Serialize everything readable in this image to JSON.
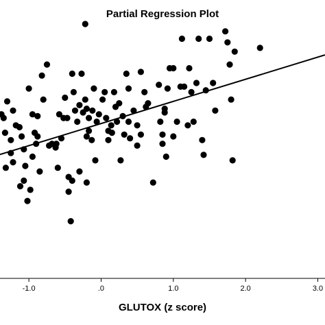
{
  "chart_data": {
    "type": "scatter",
    "title": "Partial Regression Plot",
    "xlabel": "GLUTOX (z score)",
    "ylabel": "",
    "xlim": [
      -1.4,
      3.1
    ],
    "ylim": [
      -4.2,
      3.35
    ],
    "x_ticks": [
      {
        "value": -1.0,
        "label": "-1.0"
      },
      {
        "value": 0.0,
        "label": ".0"
      },
      {
        "value": 1.0,
        "label": "1.0"
      },
      {
        "value": 2.0,
        "label": "2.0"
      },
      {
        "value": 3.0,
        "label": "3.0"
      }
    ],
    "grid": false,
    "legend": false,
    "colors": {
      "points": "#000000",
      "line": "#000000",
      "axis": "#000000"
    },
    "fit_line": {
      "intercept": 0.0,
      "slope": 0.6
    },
    "points": [
      {
        "x": -1.3,
        "y": 0.6
      },
      {
        "x": -1.22,
        "y": 0.35
      },
      {
        "x": -1.18,
        "y": -0.05
      },
      {
        "x": -1.13,
        "y": -0.1
      },
      {
        "x": -1.33,
        "y": -0.25
      },
      {
        "x": -1.25,
        "y": -0.45
      },
      {
        "x": -1.1,
        "y": -0.35
      },
      {
        "x": -1.25,
        "y": -0.8
      },
      {
        "x": -1.32,
        "y": -1.2
      },
      {
        "x": -1.22,
        "y": -1.05
      },
      {
        "x": -1.07,
        "y": -0.7
      },
      {
        "x": -1.0,
        "y": 0.95
      },
      {
        "x": -0.95,
        "y": 0.25
      },
      {
        "x": -0.92,
        "y": -0.25
      },
      {
        "x": -0.88,
        "y": -0.35
      },
      {
        "x": -0.95,
        "y": -0.9
      },
      {
        "x": -1.05,
        "y": -1.15
      },
      {
        "x": -1.07,
        "y": -1.55
      },
      {
        "x": -1.12,
        "y": -1.7
      },
      {
        "x": -0.98,
        "y": -1.8
      },
      {
        "x": -1.02,
        "y": -2.1
      },
      {
        "x": -0.9,
        "y": -0.55
      },
      {
        "x": -0.85,
        "y": -1.3
      },
      {
        "x": -0.82,
        "y": 1.3
      },
      {
        "x": -0.75,
        "y": 1.6
      },
      {
        "x": -0.8,
        "y": 0.65
      },
      {
        "x": -0.72,
        "y": -0.6
      },
      {
        "x": -0.68,
        "y": -0.55
      },
      {
        "x": -0.62,
        "y": -0.55
      },
      {
        "x": -0.58,
        "y": 0.25
      },
      {
        "x": -0.52,
        "y": 0.15
      },
      {
        "x": -0.6,
        "y": -1.2
      },
      {
        "x": -0.55,
        "y": -0.4
      },
      {
        "x": -0.5,
        "y": 0.7
      },
      {
        "x": -0.47,
        "y": 0.15
      },
      {
        "x": -0.45,
        "y": -1.45
      },
      {
        "x": -0.4,
        "y": 1.35
      },
      {
        "x": -0.38,
        "y": 0.85
      },
      {
        "x": -0.36,
        "y": 0.35
      },
      {
        "x": -0.33,
        "y": 0.05
      },
      {
        "x": -0.4,
        "y": -1.55
      },
      {
        "x": -0.45,
        "y": -1.85
      },
      {
        "x": -0.42,
        "y": -2.65
      },
      {
        "x": -0.3,
        "y": -1.3
      },
      {
        "x": -0.3,
        "y": 0.5
      },
      {
        "x": -0.27,
        "y": 1.35
      },
      {
        "x": -0.25,
        "y": 0.3
      },
      {
        "x": -0.22,
        "y": 0.65
      },
      {
        "x": -0.2,
        "y": 0.4
      },
      {
        "x": -0.17,
        "y": 0.15
      },
      {
        "x": -0.2,
        "y": -0.35
      },
      {
        "x": -0.17,
        "y": -0.2
      },
      {
        "x": -0.13,
        "y": -0.45
      },
      {
        "x": -0.1,
        "y": 0.95
      },
      {
        "x": -0.12,
        "y": 0.35
      },
      {
        "x": -0.08,
        "y": -1.0
      },
      {
        "x": -0.06,
        "y": 0.05
      },
      {
        "x": -0.03,
        "y": 0.25
      },
      {
        "x": 0.02,
        "y": 0.65
      },
      {
        "x": 0.05,
        "y": 0.85
      },
      {
        "x": 0.07,
        "y": 0.15
      },
      {
        "x": 0.1,
        "y": -0.2
      },
      {
        "x": 0.14,
        "y": -0.05
      },
      {
        "x": 0.18,
        "y": 0.85
      },
      {
        "x": 0.2,
        "y": 0.45
      },
      {
        "x": 0.22,
        "y": 0.05
      },
      {
        "x": 0.25,
        "y": 0.55
      },
      {
        "x": 0.27,
        "y": -1.0
      },
      {
        "x": 0.15,
        "y": -0.25
      },
      {
        "x": -0.2,
        "y": -1.6
      },
      {
        "x": -0.22,
        "y": 2.7
      },
      {
        "x": 0.3,
        "y": 0.2
      },
      {
        "x": 0.35,
        "y": 1.35
      },
      {
        "x": 0.38,
        "y": 0.95
      },
      {
        "x": 0.38,
        "y": 0.05
      },
      {
        "x": 0.4,
        "y": -0.4
      },
      {
        "x": 0.45,
        "y": 0.35
      },
      {
        "x": 0.5,
        "y": -0.05
      },
      {
        "x": 0.5,
        "y": -0.6
      },
      {
        "x": 0.55,
        "y": -0.3
      },
      {
        "x": 0.55,
        "y": 1.4
      },
      {
        "x": 0.6,
        "y": 0.85
      },
      {
        "x": 0.62,
        "y": 0.45
      },
      {
        "x": 0.65,
        "y": 0.55
      },
      {
        "x": 0.72,
        "y": -1.6
      },
      {
        "x": 0.8,
        "y": 1.05
      },
      {
        "x": 0.82,
        "y": 0.05
      },
      {
        "x": 0.85,
        "y": -0.55
      },
      {
        "x": 0.85,
        "y": -0.3
      },
      {
        "x": 0.88,
        "y": 0.4
      },
      {
        "x": 0.88,
        "y": 0.3
      },
      {
        "x": 0.9,
        "y": -0.9
      },
      {
        "x": 0.92,
        "y": 0.95
      },
      {
        "x": 0.95,
        "y": 1.5
      },
      {
        "x": 1.0,
        "y": 1.5
      },
      {
        "x": 1.0,
        "y": -0.35
      },
      {
        "x": 1.05,
        "y": 0.05
      },
      {
        "x": 1.1,
        "y": 1.0
      },
      {
        "x": 1.12,
        "y": 2.3
      },
      {
        "x": 1.15,
        "y": 1.0
      },
      {
        "x": 1.2,
        "y": -0.05
      },
      {
        "x": 1.22,
        "y": 1.5
      },
      {
        "x": 1.25,
        "y": 0.85
      },
      {
        "x": 1.28,
        "y": 0.05
      },
      {
        "x": 1.32,
        "y": 1.1
      },
      {
        "x": 1.35,
        "y": 2.3
      },
      {
        "x": 1.4,
        "y": -0.45
      },
      {
        "x": 1.42,
        "y": -0.85
      },
      {
        "x": 1.45,
        "y": 0.9
      },
      {
        "x": 1.5,
        "y": 2.3
      },
      {
        "x": 1.55,
        "y": 1.1
      },
      {
        "x": 1.58,
        "y": 0.35
      },
      {
        "x": 1.72,
        "y": 2.5
      },
      {
        "x": 1.75,
        "y": 2.2
      },
      {
        "x": 1.78,
        "y": 1.6
      },
      {
        "x": 1.8,
        "y": 0.65
      },
      {
        "x": 1.82,
        "y": -1.0
      },
      {
        "x": 1.85,
        "y": 1.95
      },
      {
        "x": 2.2,
        "y": 2.05
      },
      {
        "x": 0.1,
        "y": -0.45
      },
      {
        "x": 0.32,
        "y": -0.3
      },
      {
        "x": -0.63,
        "y": -0.65
      },
      {
        "x": -0.88,
        "y": 0.2
      },
      {
        "x": -1.38,
        "y": 0.25
      },
      {
        "x": -1.35,
        "y": 0.15
      }
    ]
  }
}
